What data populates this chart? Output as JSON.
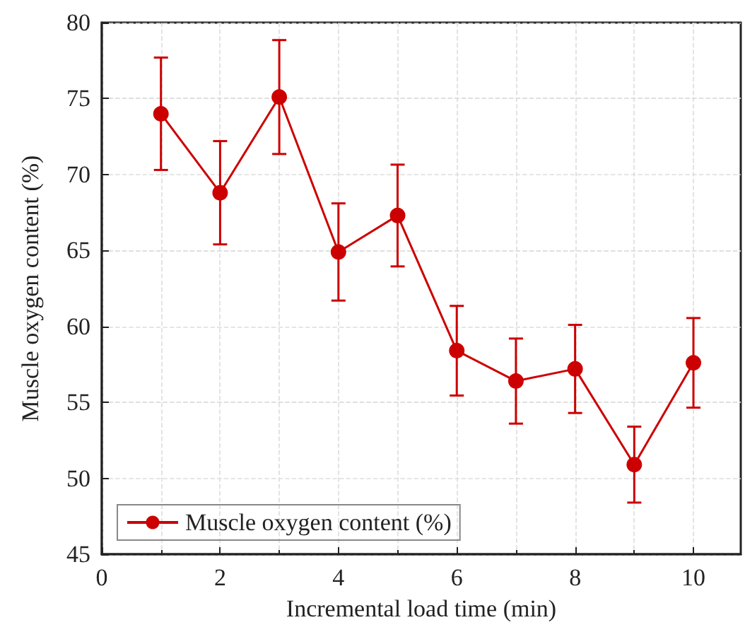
{
  "chart_data": {
    "type": "line",
    "xlabel": "Incremental load time (min)",
    "ylabel": "Muscle oxygen content (%)",
    "x": [
      1,
      2,
      3,
      4,
      5,
      6,
      7,
      8,
      9,
      10
    ],
    "series": [
      {
        "name": "Muscle oxygen content (%)",
        "color": "#cc0000",
        "values": [
          74.0,
          68.8,
          75.1,
          64.9,
          67.3,
          58.4,
          56.4,
          57.2,
          50.9,
          57.6
        ],
        "errors": [
          3.7,
          3.4,
          3.75,
          3.2,
          3.35,
          2.95,
          2.8,
          2.9,
          2.5,
          2.95
        ]
      }
    ],
    "xlim": [
      0,
      10.8
    ],
    "xticks": [
      0,
      2,
      4,
      6,
      8,
      10
    ],
    "ylim": [
      45,
      80
    ],
    "yticks": [
      45,
      50,
      55,
      60,
      65,
      70,
      75,
      80
    ],
    "grid": true,
    "legend": "bottom left",
    "marker": "circle",
    "line_style": "solid"
  }
}
